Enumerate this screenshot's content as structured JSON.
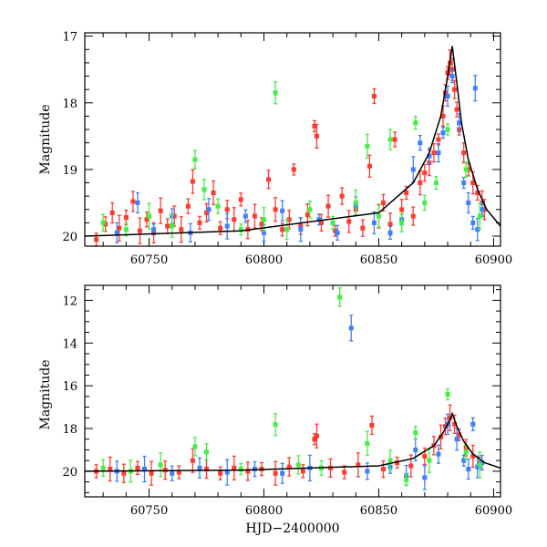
{
  "chart_data": [
    {
      "type": "scatter",
      "title": "",
      "xlabel": "",
      "ylabel": "Magnitude",
      "xlim": [
        60722,
        60903
      ],
      "ylim": [
        20.15,
        16.95
      ],
      "y_inverted": true,
      "x_ticks": [
        60750,
        60800,
        60850,
        60900
      ],
      "x_tick_labels": [
        "60750",
        "60800",
        "60850",
        "60900"
      ],
      "y_ticks": [
        17,
        18,
        19,
        20
      ],
      "y_tick_labels": [
        "17",
        "18",
        "19",
        "20"
      ],
      "grid": false,
      "legend": "none",
      "series": [
        {
          "color": "#ff3b30",
          "points": [
            [
              60727,
              20.05
            ],
            [
              60731,
              19.82
            ],
            [
              60734,
              19.65
            ],
            [
              60737,
              19.88
            ],
            [
              60740,
              19.72
            ],
            [
              60743,
              19.48
            ],
            [
              60746,
              19.92
            ],
            [
              60749,
              19.75
            ],
            [
              60752,
              19.95
            ],
            [
              60755,
              19.62
            ],
            [
              60758,
              19.85
            ],
            [
              60761,
              19.7
            ],
            [
              60764,
              19.9
            ],
            [
              60767,
              19.55
            ],
            [
              60769,
              19.18
            ],
            [
              60772,
              19.8
            ],
            [
              60775,
              19.65
            ],
            [
              60778,
              19.35
            ],
            [
              60781,
              19.88
            ],
            [
              60784,
              19.6
            ],
            [
              60787,
              19.75
            ],
            [
              60790,
              19.45
            ],
            [
              60793,
              19.9
            ],
            [
              60796,
              19.7
            ],
            [
              60799,
              19.82
            ],
            [
              60802,
              19.15
            ],
            [
              60805,
              19.6
            ],
            [
              60808,
              19.9
            ],
            [
              60811,
              19.75
            ],
            [
              60813,
              19.0
            ],
            [
              60816,
              19.85
            ],
            [
              60819,
              19.68
            ],
            [
              60822,
              18.35
            ],
            [
              60823,
              18.5
            ],
            [
              60825,
              19.8
            ],
            [
              60828,
              19.55
            ],
            [
              60831,
              19.92
            ],
            [
              60834,
              19.4
            ],
            [
              60837,
              19.78
            ],
            [
              60840,
              19.6
            ],
            [
              60843,
              19.88
            ],
            [
              60846,
              18.95
            ],
            [
              60848,
              17.9
            ],
            [
              60850,
              19.7
            ],
            [
              60852,
              19.5
            ],
            [
              60855,
              19.82
            ],
            [
              60857,
              18.55
            ],
            [
              60860,
              19.6
            ],
            [
              60862,
              19.35
            ],
            [
              60865,
              19.7
            ],
            [
              60868,
              19.2
            ],
            [
              60870,
              19.05
            ],
            [
              60872,
              18.9
            ],
            [
              60874,
              18.75
            ],
            [
              60876,
              18.55
            ],
            [
              60878,
              18.2
            ],
            [
              60879,
              17.85
            ],
            [
              60880,
              17.55
            ],
            [
              60881,
              17.4
            ],
            [
              60882,
              17.5
            ],
            [
              60883,
              17.8
            ],
            [
              60884,
              18.1
            ],
            [
              60885,
              18.4
            ],
            [
              60887,
              18.75
            ],
            [
              60889,
              19.0
            ],
            [
              60891,
              19.2
            ],
            [
              60893,
              19.35
            ],
            [
              60895,
              19.5
            ],
            [
              60896,
              19.6
            ]
          ]
        },
        {
          "color": "#3f7fff",
          "points": [
            [
              60736,
              19.95
            ],
            [
              60745,
              19.5
            ],
            [
              60752,
              19.9
            ],
            [
              60760,
              19.7
            ],
            [
              60768,
              19.95
            ],
            [
              60776,
              19.6
            ],
            [
              60784,
              19.85
            ],
            [
              60792,
              19.7
            ],
            [
              60800,
              19.95
            ],
            [
              60808,
              19.62
            ],
            [
              60816,
              19.9
            ],
            [
              60824,
              19.75
            ],
            [
              60832,
              19.95
            ],
            [
              60840,
              19.55
            ],
            [
              60848,
              19.8
            ],
            [
              60855,
              19.95
            ],
            [
              60860,
              19.75
            ],
            [
              60865,
              19.0
            ],
            [
              60868,
              18.6
            ],
            [
              60872,
              18.8
            ],
            [
              60876,
              18.75
            ],
            [
              60878,
              18.45
            ],
            [
              60880,
              17.9
            ],
            [
              60882,
              17.6
            ],
            [
              60885,
              18.3
            ],
            [
              60887,
              19.2
            ],
            [
              60889,
              19.5
            ],
            [
              60891,
              19.8
            ],
            [
              60892,
              17.78
            ],
            [
              60893,
              19.9
            ],
            [
              60895,
              19.6
            ]
          ]
        },
        {
          "color": "#44ee44",
          "points": [
            [
              60730,
              19.8
            ],
            [
              60740,
              19.9
            ],
            [
              60750,
              19.7
            ],
            [
              60760,
              19.85
            ],
            [
              60770,
              18.85
            ],
            [
              60774,
              19.3
            ],
            [
              60780,
              19.55
            ],
            [
              60790,
              19.9
            ],
            [
              60800,
              19.75
            ],
            [
              60805,
              17.85
            ],
            [
              60810,
              19.9
            ],
            [
              60820,
              19.6
            ],
            [
              60830,
              19.8
            ],
            [
              60840,
              19.5
            ],
            [
              60845,
              18.65
            ],
            [
              60850,
              19.7
            ],
            [
              60855,
              18.55
            ],
            [
              60860,
              19.8
            ],
            [
              60866,
              18.3
            ],
            [
              60870,
              19.5
            ],
            [
              60875,
              19.2
            ],
            [
              60880,
              18.4
            ],
            [
              60888,
              19.0
            ],
            [
              60894,
              19.7
            ]
          ]
        }
      ],
      "model_curve": {
        "color": "#000000",
        "points": [
          [
            60722,
            20.0
          ],
          [
            60790,
            19.92
          ],
          [
            60850,
            19.65
          ],
          [
            60865,
            19.2
          ],
          [
            60872,
            18.75
          ],
          [
            60877,
            18.2
          ],
          [
            60880,
            17.6
          ],
          [
            60882,
            17.15
          ],
          [
            60884,
            17.7
          ],
          [
            60886,
            18.3
          ],
          [
            60889,
            18.85
          ],
          [
            60893,
            19.3
          ],
          [
            60897,
            19.6
          ],
          [
            60903,
            19.85
          ]
        ]
      }
    },
    {
      "type": "scatter",
      "title": "",
      "xlabel": "HJD−2400000",
      "ylabel": "Magnitude",
      "xlim": [
        60722,
        60903
      ],
      "ylim": [
        21.2,
        11.3
      ],
      "y_inverted": true,
      "x_ticks": [
        60750,
        60800,
        60850,
        60900
      ],
      "x_tick_labels": [
        "60750",
        "60800",
        "60850",
        "60900"
      ],
      "y_ticks": [
        12,
        14,
        16,
        18,
        20
      ],
      "y_tick_labels": [
        "12",
        "14",
        "16",
        "18",
        "20"
      ],
      "grid": false,
      "legend": "none",
      "series": [
        {
          "color": "#ff3b30",
          "points": [
            [
              60727,
              20.0
            ],
            [
              60733,
              19.9
            ],
            [
              60739,
              20.1
            ],
            [
              60745,
              19.85
            ],
            [
              60751,
              20.1
            ],
            [
              60757,
              19.95
            ],
            [
              60763,
              20.05
            ],
            [
              60769,
              19.5
            ],
            [
              60775,
              19.9
            ],
            [
              60781,
              20.1
            ],
            [
              60787,
              19.85
            ],
            [
              60793,
              20.0
            ],
            [
              60799,
              19.9
            ],
            [
              60805,
              20.1
            ],
            [
              60811,
              19.8
            ],
            [
              60817,
              20.0
            ],
            [
              60822,
              18.5
            ],
            [
              60823,
              18.35
            ],
            [
              60829,
              19.85
            ],
            [
              60835,
              20.05
            ],
            [
              60841,
              19.7
            ],
            [
              60847,
              17.85
            ],
            [
              60852,
              19.9
            ],
            [
              60858,
              19.6
            ],
            [
              60864,
              19.75
            ],
            [
              60870,
              19.3
            ],
            [
              60874,
              18.8
            ],
            [
              60877,
              18.4
            ],
            [
              60879,
              17.9
            ],
            [
              60881,
              17.5
            ],
            [
              60883,
              17.8
            ],
            [
              60885,
              18.3
            ],
            [
              60888,
              18.9
            ],
            [
              60891,
              19.3
            ],
            [
              60894,
              19.6
            ]
          ]
        },
        {
          "color": "#3f7fff",
          "points": [
            [
              60736,
              20.0
            ],
            [
              60748,
              19.9
            ],
            [
              60760,
              20.1
            ],
            [
              60772,
              19.85
            ],
            [
              60784,
              20.05
            ],
            [
              60796,
              19.9
            ],
            [
              60808,
              20.1
            ],
            [
              60820,
              19.85
            ],
            [
              60838,
              13.3
            ],
            [
              60845,
              20.0
            ],
            [
              60855,
              19.8
            ],
            [
              60862,
              20.2
            ],
            [
              60866,
              19.0
            ],
            [
              60870,
              20.3
            ],
            [
              60876,
              19.2
            ],
            [
              60880,
              17.8
            ],
            [
              60884,
              18.5
            ],
            [
              60887,
              19.5
            ],
            [
              60889,
              19.9
            ],
            [
              60891,
              17.8
            ],
            [
              60893,
              19.8
            ],
            [
              60895,
              19.6
            ]
          ]
        },
        {
          "color": "#44ee44",
          "points": [
            [
              60730,
              19.85
            ],
            [
              60742,
              20.0
            ],
            [
              60755,
              19.7
            ],
            [
              60770,
              18.85
            ],
            [
              60775,
              19.1
            ],
            [
              60790,
              19.9
            ],
            [
              60805,
              17.82
            ],
            [
              60815,
              19.7
            ],
            [
              60825,
              19.85
            ],
            [
              60833,
              11.85
            ],
            [
              60845,
              18.7
            ],
            [
              60855,
              19.5
            ],
            [
              60862,
              20.4
            ],
            [
              60866,
              18.2
            ],
            [
              60872,
              19.5
            ],
            [
              60880,
              16.4
            ],
            [
              60888,
              19.1
            ],
            [
              60894,
              19.7
            ]
          ]
        }
      ],
      "model_curve": {
        "color": "#000000",
        "points": [
          [
            60722,
            20.0
          ],
          [
            60790,
            19.95
          ],
          [
            60850,
            19.75
          ],
          [
            60865,
            19.4
          ],
          [
            60874,
            18.8
          ],
          [
            60878,
            18.2
          ],
          [
            60881,
            17.6
          ],
          [
            60882,
            17.3
          ],
          [
            60884,
            17.9
          ],
          [
            60887,
            18.6
          ],
          [
            60891,
            19.2
          ],
          [
            60896,
            19.6
          ],
          [
            60903,
            19.85
          ]
        ]
      }
    }
  ]
}
